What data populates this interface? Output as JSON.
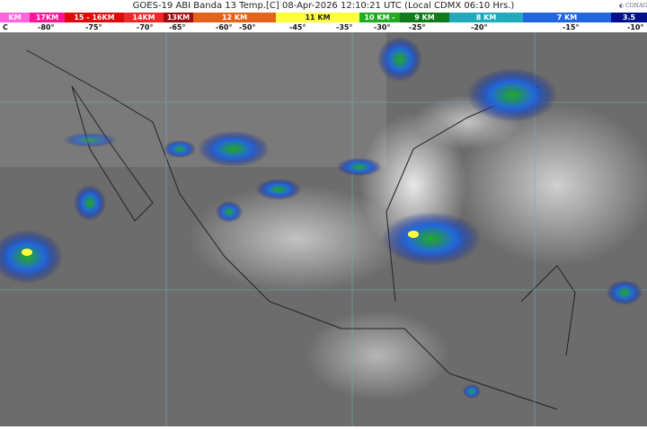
{
  "title": "GOES-19 ABI Banda 13 Temp.[C] 08-Apr-2026 12:10:21 UTC (Local CDMX  06:10 Hrs.)",
  "logo_text": "CONAGUA",
  "scale": [
    {
      "label": "KM",
      "color": "#ff66dd"
    },
    {
      "label": "17KM",
      "color": "#ff1493"
    },
    {
      "label": "15 - 16KM",
      "color": "#dd0a0a"
    },
    {
      "label": "14KM",
      "color": "#ee2828"
    },
    {
      "label": "13KM",
      "color": "#9a0f12"
    },
    {
      "label": "12 KM",
      "color": "#e2641a"
    },
    {
      "label": "11 KM",
      "color": "#ffff40",
      "dark": true
    },
    {
      "label": "10 KM -",
      "color": "#22aa22"
    },
    {
      "label": "9 KM",
      "color": "#117a1a"
    },
    {
      "label": "8 KM",
      "color": "#22aabb"
    },
    {
      "label": "7 KM",
      "color": "#2266dd"
    },
    {
      "label": "3.5",
      "color": "#00118a"
    }
  ],
  "temps": [
    "C",
    "-80°",
    "-75°",
    "-70°",
    "-65°",
    "-60°",
    "-50°",
    "-45°",
    "-35°",
    "-30°",
    "-25°",
    "-20°",
    "-15°",
    "-10°"
  ]
}
